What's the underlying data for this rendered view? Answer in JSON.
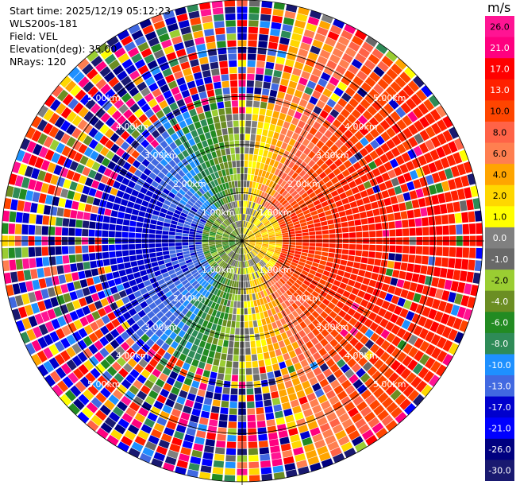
{
  "info": {
    "start_time": "Start time: 2025/12/19 05:12:23",
    "instrument": "WLS200s-181",
    "field": "Field: VEL",
    "elevation": "Elevation(deg): 35.00",
    "nrays": "NRays: 120"
  },
  "colorbar": {
    "unit": "m/s",
    "labels": [
      "26.0",
      "21.0",
      "17.0",
      "13.0",
      "10.0",
      "8.0",
      "6.0",
      "4.0",
      "2.0",
      "1.0",
      "0.0",
      "-1.0",
      "-2.0",
      "-4.0",
      "-6.0",
      "-8.0",
      "-10.0",
      "-13.0",
      "-17.0",
      "-21.0",
      "-26.0",
      "-30.0"
    ],
    "colors": [
      "#ff1493",
      "#ff007f",
      "#ff0000",
      "#ff2000",
      "#ff4500",
      "#ff6347",
      "#ff7f50",
      "#ffa500",
      "#ffd700",
      "#ffff00",
      "#808080",
      "#696969",
      "#9acd32",
      "#6b8e23",
      "#228b22",
      "#2e8b57",
      "#1e90ff",
      "#4169e1",
      "#0000cd",
      "#0000ff",
      "#000080",
      "#191970"
    ]
  },
  "chart_data": {
    "type": "heatmap",
    "field": "VEL",
    "nrays": 120,
    "elevation_deg": 35.0,
    "range_km_max": 5.0,
    "range_rings_km": [
      1,
      2,
      3,
      4,
      5
    ],
    "ring_labels": [
      "1.00km",
      "2.00km",
      "3.00km",
      "4.00km",
      "5.00km"
    ],
    "value_range": [
      -30,
      26
    ],
    "pattern": "inner ~2.5km: positive velocities (yellow-orange-red) east side, negative (green-blue) west side; outer ranges noisy/random"
  }
}
